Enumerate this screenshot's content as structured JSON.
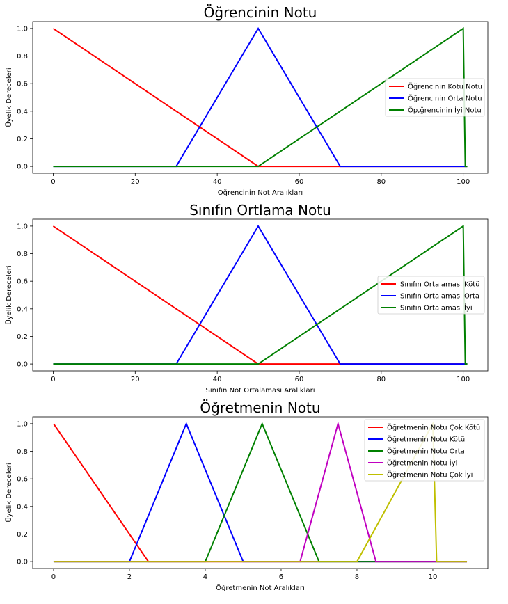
{
  "chart_data": [
    {
      "type": "line",
      "title": "Öğrencinin Notu",
      "xlabel": "Öğrencinin Not Aralıkları",
      "ylabel": "Üyelik Dereceleri",
      "xlim": [
        -5,
        106
      ],
      "ylim": [
        -0.05,
        1.05
      ],
      "xticks": [
        0,
        20,
        40,
        60,
        80,
        100
      ],
      "xtick_labels": [
        "0",
        "20",
        "40",
        "60",
        "80",
        "100"
      ],
      "yticks": [
        0,
        0.2,
        0.4,
        0.6,
        0.8,
        1.0
      ],
      "ytick_labels": [
        "0.0",
        "0.2",
        "0.4",
        "0.6",
        "0.8",
        "1.0"
      ],
      "legend_position": "center-right",
      "series": [
        {
          "name": "Öğrencinin Kötü Notu",
          "color": "#ff0000",
          "x": [
            0,
            50,
            101
          ],
          "y": [
            1,
            0,
            0
          ]
        },
        {
          "name": "Öğrencinin Orta Notu",
          "color": "#0000ff",
          "x": [
            0,
            30,
            50,
            70,
            101
          ],
          "y": [
            0,
            0,
            1,
            0,
            0
          ]
        },
        {
          "name": "Öp,ğrencinin İyi Notu",
          "color": "#008000",
          "x": [
            0,
            50,
            100,
            100.5,
            101
          ],
          "y": [
            0,
            0,
            1,
            0,
            0
          ]
        }
      ]
    },
    {
      "type": "line",
      "title": "Sınıfın Ortlama Notu",
      "xlabel": "Sınıfın Not Ortalaması Aralıkları",
      "ylabel": "Üyelik Dereceleri",
      "xlim": [
        -5,
        106
      ],
      "ylim": [
        -0.05,
        1.05
      ],
      "xticks": [
        0,
        20,
        40,
        60,
        80,
        100
      ],
      "xtick_labels": [
        "0",
        "20",
        "40",
        "60",
        "80",
        "100"
      ],
      "yticks": [
        0,
        0.2,
        0.4,
        0.6,
        0.8,
        1.0
      ],
      "ytick_labels": [
        "0.0",
        "0.2",
        "0.4",
        "0.6",
        "0.8",
        "1.0"
      ],
      "legend_position": "center-right",
      "series": [
        {
          "name": "Sınıfın Ortalaması Kötü",
          "color": "#ff0000",
          "x": [
            0,
            50,
            101
          ],
          "y": [
            1,
            0,
            0
          ]
        },
        {
          "name": "Sınıfın Ortalaması Orta",
          "color": "#0000ff",
          "x": [
            0,
            30,
            50,
            70,
            101
          ],
          "y": [
            0,
            0,
            1,
            0,
            0
          ]
        },
        {
          "name": "Sınıfın Ortalaması İyi",
          "color": "#008000",
          "x": [
            0,
            50,
            100,
            100.5,
            101
          ],
          "y": [
            0,
            0,
            1,
            0,
            0
          ]
        }
      ]
    },
    {
      "type": "line",
      "title": "Öğretmenin Notu",
      "xlabel": "Öğretmenin Not Aralıkları",
      "ylabel": "Üyelik Dereceleri",
      "xlim": [
        -0.55,
        11.45
      ],
      "ylim": [
        -0.05,
        1.05
      ],
      "xticks": [
        0,
        2,
        4,
        6,
        8,
        10
      ],
      "xtick_labels": [
        "0",
        "2",
        "4",
        "6",
        "8",
        "10"
      ],
      "yticks": [
        0,
        0.2,
        0.4,
        0.6,
        0.8,
        1.0
      ],
      "ytick_labels": [
        "0.0",
        "0.2",
        "0.4",
        "0.6",
        "0.8",
        "1.0"
      ],
      "legend_position": "upper-right",
      "series": [
        {
          "name": "Öğretmenin Notu Çok Kötü",
          "color": "#ff0000",
          "x": [
            0,
            2.5,
            10.9
          ],
          "y": [
            1,
            0,
            0
          ]
        },
        {
          "name": "Öğretmenin Notu Kötü",
          "color": "#0000ff",
          "x": [
            0,
            2,
            3.5,
            5,
            10.9
          ],
          "y": [
            0,
            0,
            1,
            0,
            0
          ]
        },
        {
          "name": "Öğretmenin Notu Orta",
          "color": "#008000",
          "x": [
            0,
            4,
            5.5,
            7,
            10.9
          ],
          "y": [
            0,
            0,
            1,
            0,
            0
          ]
        },
        {
          "name": "Öğretmenin Notu İyi",
          "color": "#c000c0",
          "x": [
            0,
            6.5,
            7.5,
            8.5,
            10.9
          ],
          "y": [
            0,
            0,
            1,
            0,
            0
          ]
        },
        {
          "name": "Öğretmenin Notu Çok İyi",
          "color": "#bfbf00",
          "x": [
            0,
            8,
            10,
            10.1,
            10.9
          ],
          "y": [
            0,
            0,
            1,
            0,
            0
          ]
        }
      ]
    }
  ]
}
